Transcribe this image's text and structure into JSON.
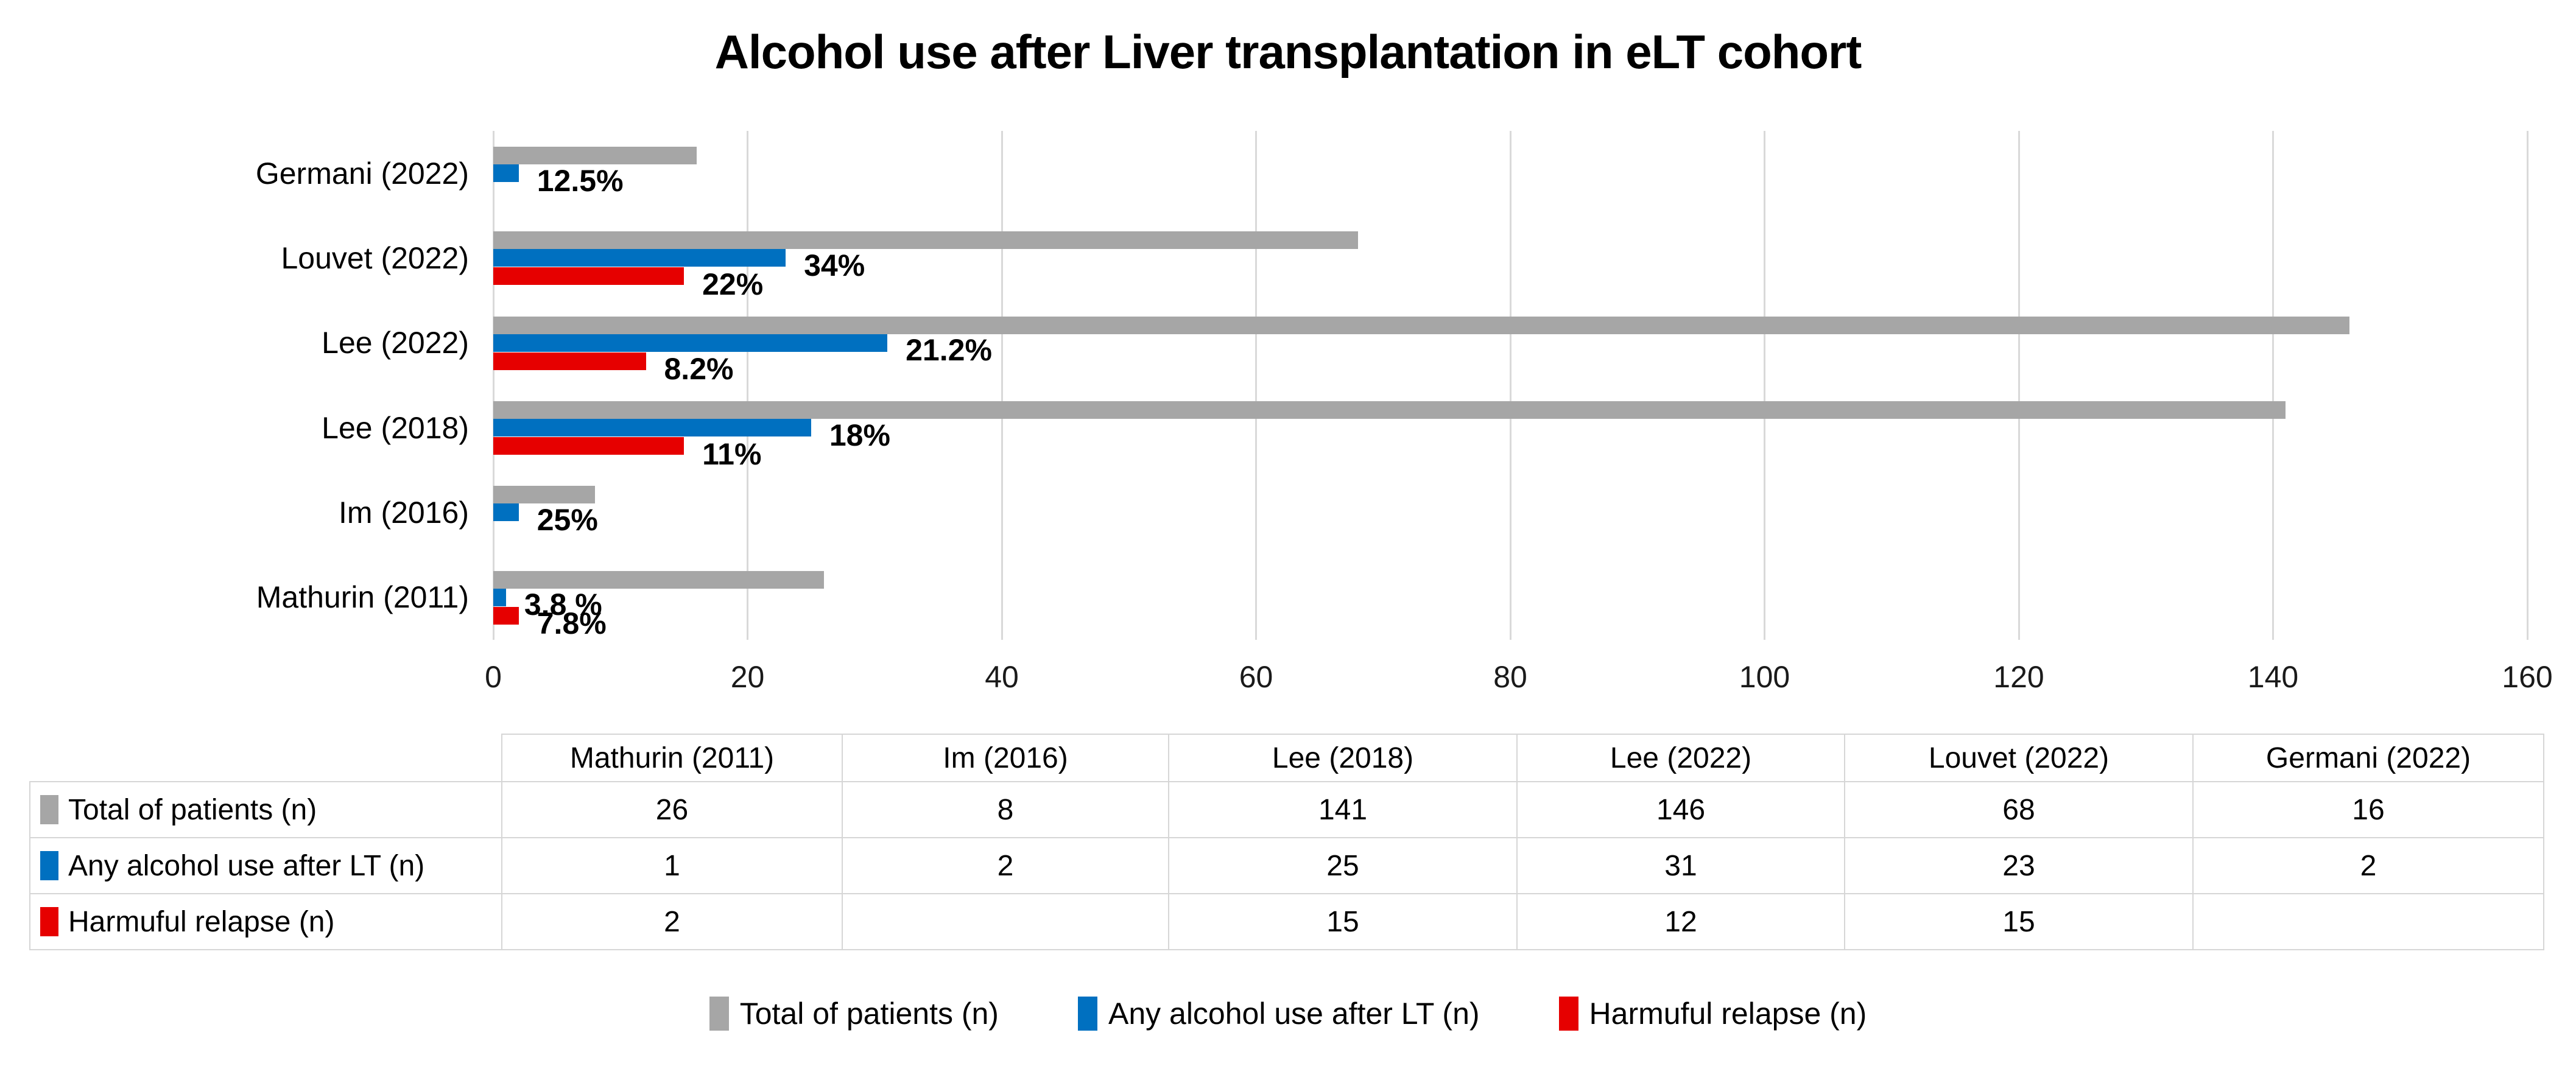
{
  "title": "Alcohol use after Liver transplantation in eLT cohort",
  "chart_data": {
    "type": "bar",
    "orientation": "horizontal",
    "title": "Alcohol use after Liver transplantation in eLT cohort",
    "xlabel": "",
    "ylabel": "",
    "xlim": [
      0,
      160
    ],
    "x_ticks": [
      0,
      20,
      40,
      60,
      80,
      100,
      120,
      140,
      160
    ],
    "grid": "vertical-light-gray",
    "legend_position": "bottom",
    "series_names": [
      "Total of patients (n)",
      "Any alcohol use after LT (n)",
      "Harmuful relapse (n)"
    ],
    "colors": {
      "total": "#a6a6a6",
      "alcohol": "#0070c0",
      "relapse": "#e60000"
    },
    "categories_top_to_bottom": [
      {
        "name": "Germani (2022)",
        "total": 16,
        "alcohol": 2,
        "alcohol_label": "12.5%",
        "relapse": null,
        "relapse_label": null
      },
      {
        "name": "Louvet (2022)",
        "total": 68,
        "alcohol": 23,
        "alcohol_label": "34%",
        "relapse": 15,
        "relapse_label": "22%"
      },
      {
        "name": "Lee (2022)",
        "total": 146,
        "alcohol": 31,
        "alcohol_label": "21.2%",
        "relapse": 12,
        "relapse_label": "8.2%"
      },
      {
        "name": "Lee (2018)",
        "total": 141,
        "alcohol": 25,
        "alcohol_label": "18%",
        "relapse": 15,
        "relapse_label": "11%"
      },
      {
        "name": "Im (2016)",
        "total": 8,
        "alcohol": 2,
        "alcohol_label": "25%",
        "relapse": null,
        "relapse_label": null
      },
      {
        "name": "Mathurin (2011)",
        "total": 26,
        "alcohol": 1,
        "alcohol_label": "3.8 %",
        "relapse": 2,
        "relapse_label": "7.8%"
      }
    ]
  },
  "table": {
    "column_headers": [
      "Mathurin (2011)",
      "Im (2016)",
      "Lee (2018)",
      "Lee (2022)",
      "Louvet (2022)",
      "Germani (2022)"
    ],
    "rows": [
      {
        "label": "Total of patients (n)",
        "swatch_color": "#a6a6a6",
        "values": [
          "26",
          "8",
          "141",
          "146",
          "68",
          "16"
        ]
      },
      {
        "label": "Any alcohol use after LT (n)",
        "swatch_color": "#0070c0",
        "values": [
          "1",
          "2",
          "25",
          "31",
          "23",
          "2"
        ]
      },
      {
        "label": "Harmuful relapse (n)",
        "swatch_color": "#e60000",
        "values": [
          "2",
          "",
          "15",
          "12",
          "15",
          ""
        ]
      }
    ]
  },
  "legend": [
    {
      "label": "Total of patients (n)",
      "color": "#a6a6a6"
    },
    {
      "label": "Any alcohol use after LT (n)",
      "color": "#0070c0"
    },
    {
      "label": "Harmuful relapse (n)",
      "color": "#e60000"
    }
  ]
}
